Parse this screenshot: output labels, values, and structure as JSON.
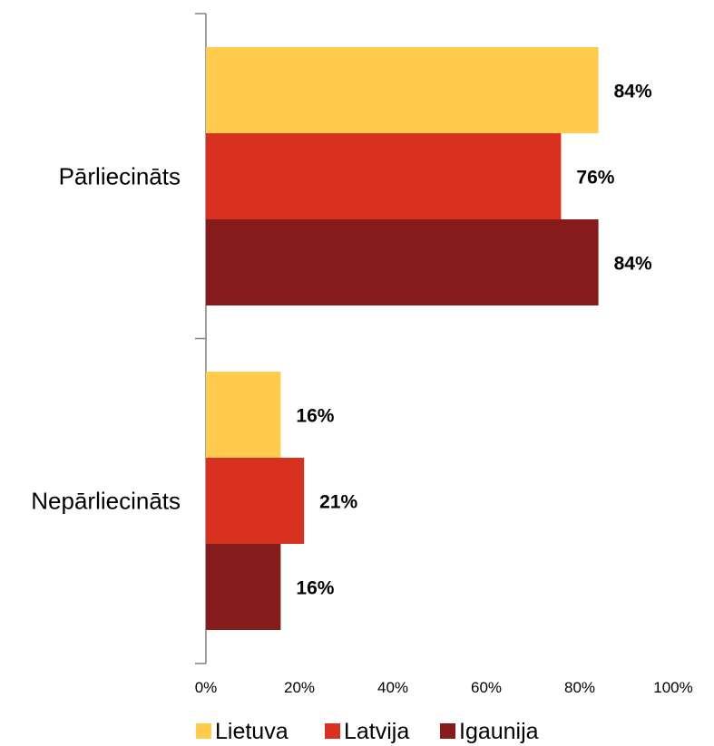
{
  "chart_data": {
    "type": "bar",
    "orientation": "horizontal",
    "categories": [
      "Pārliecināts",
      "Nepārliecināts"
    ],
    "series": [
      {
        "name": "Lietuva",
        "values": [
          84,
          16
        ],
        "labels": [
          "84%",
          "16%"
        ],
        "color": "#FFCC4D"
      },
      {
        "name": "Latvija",
        "values": [
          76,
          21
        ],
        "labels": [
          "76%",
          "21%"
        ],
        "color": "#D9311F"
      },
      {
        "name": "Igaunija",
        "values": [
          84,
          16
        ],
        "labels": [
          "84%",
          "16%"
        ],
        "color": "#861B1B"
      }
    ],
    "xlim": [
      0,
      100
    ],
    "xticks": [
      "0%",
      "20%",
      "40%",
      "60%",
      "80%",
      "100%"
    ],
    "grid": false,
    "legend_position": "bottom",
    "title": "",
    "xlabel": "",
    "ylabel": ""
  }
}
